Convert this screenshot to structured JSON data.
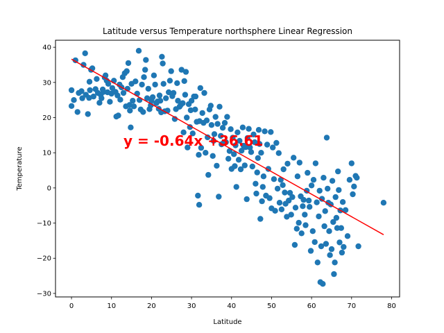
{
  "chart_data": {
    "type": "scatter",
    "title": "Latitude versus Temperature northsphere Linear Regression",
    "xlabel": "Latitude",
    "ylabel": "Temperature",
    "xlim": [
      -4,
      82
    ],
    "ylim": [
      -31,
      42
    ],
    "xticks": [
      0,
      10,
      20,
      30,
      40,
      50,
      60,
      70,
      80
    ],
    "yticks": [
      -30,
      -20,
      -10,
      0,
      10,
      20,
      30,
      40
    ],
    "grid": false,
    "point_color": "#1f77b4",
    "line_color": "#ff0000",
    "annotation_color": "#ff0000",
    "regression": {
      "slope": -0.64,
      "intercept": 36.61,
      "x_range": [
        0,
        78
      ],
      "equation_label": "y = -0.64x +36.61",
      "label_anchor": [
        13,
        12
      ]
    },
    "points": [
      [
        0,
        27.8
      ],
      [
        0,
        23.3
      ],
      [
        0.6,
        25
      ],
      [
        1,
        36.3
      ],
      [
        1.5,
        21.6
      ],
      [
        1.8,
        27
      ],
      [
        2.5,
        27.5
      ],
      [
        2.7,
        25.5
      ],
      [
        3,
        35
      ],
      [
        3.4,
        38.3
      ],
      [
        3.6,
        26.5
      ],
      [
        4.1,
        21
      ],
      [
        4.4,
        25.6
      ],
      [
        4.5,
        30.2
      ],
      [
        4.6,
        27.8
      ],
      [
        4.9,
        33.6
      ],
      [
        5.2,
        34
      ],
      [
        5.5,
        26
      ],
      [
        6,
        28.1
      ],
      [
        6.3,
        31
      ],
      [
        6.6,
        27
      ],
      [
        7,
        24.2
      ],
      [
        7.3,
        26.5
      ],
      [
        7.5,
        25.5
      ],
      [
        7.8,
        28
      ],
      [
        8,
        27.3
      ],
      [
        8.3,
        31.4
      ],
      [
        8.5,
        32
      ],
      [
        8.8,
        30.5
      ],
      [
        9,
        27.2
      ],
      [
        9.2,
        29.6
      ],
      [
        9.6,
        24.5
      ],
      [
        10,
        26.8
      ],
      [
        10.2,
        28.4
      ],
      [
        10.6,
        30.5
      ],
      [
        11,
        27.3
      ],
      [
        11.2,
        20.3
      ],
      [
        11.5,
        26.3
      ],
      [
        11.7,
        20.6
      ],
      [
        12,
        29.4
      ],
      [
        12.2,
        25.1
      ],
      [
        12.5,
        28.6
      ],
      [
        12.8,
        31.5
      ],
      [
        13,
        27
      ],
      [
        13.3,
        32.6
      ],
      [
        13.6,
        23.2
      ],
      [
        13.8,
        33.2
      ],
      [
        14,
        28.2
      ],
      [
        14.2,
        35.5
      ],
      [
        14.5,
        23.6
      ],
      [
        14.6,
        22
      ],
      [
        14.8,
        17.2
      ],
      [
        15,
        29.6
      ],
      [
        15.3,
        24.8
      ],
      [
        15.6,
        23.2
      ],
      [
        16,
        30.3
      ],
      [
        16.4,
        26.8
      ],
      [
        16.8,
        39
      ],
      [
        17,
        25
      ],
      [
        17.3,
        22.3
      ],
      [
        17.6,
        29.4
      ],
      [
        17.9,
        21.6
      ],
      [
        18.1,
        31.5
      ],
      [
        18.4,
        33.6
      ],
      [
        18.6,
        36.4
      ],
      [
        18.9,
        25.5
      ],
      [
        19.2,
        28.2
      ],
      [
        19.5,
        22.4
      ],
      [
        19.8,
        23.5
      ],
      [
        20,
        24.8
      ],
      [
        20.3,
        25.8
      ],
      [
        20.6,
        32
      ],
      [
        20.9,
        29.4
      ],
      [
        21.2,
        24.1
      ],
      [
        21.5,
        24.6
      ],
      [
        21.8,
        22.5
      ],
      [
        22,
        26.3
      ],
      [
        22.2,
        24.8
      ],
      [
        22.4,
        21.5
      ],
      [
        22.6,
        37.3
      ],
      [
        22.8,
        35.4
      ],
      [
        23,
        29.6
      ],
      [
        23.3,
        21.8
      ],
      [
        23.6,
        25.5
      ],
      [
        24,
        22
      ],
      [
        24.3,
        27.2
      ],
      [
        24.6,
        30.5
      ],
      [
        24.9,
        33.2
      ],
      [
        25.2,
        26.1
      ],
      [
        25.5,
        27
      ],
      [
        25.8,
        19.6
      ],
      [
        26.1,
        22.4
      ],
      [
        26.4,
        29.8
      ],
      [
        26.6,
        24.8
      ],
      [
        27,
        23.1
      ],
      [
        27.3,
        23.6
      ],
      [
        27.5,
        33.6
      ],
      [
        27.8,
        24.1
      ],
      [
        28,
        15.8
      ],
      [
        28.2,
        30.4
      ],
      [
        28.4,
        26.5
      ],
      [
        28.6,
        33
      ],
      [
        28.8,
        20
      ],
      [
        29,
        11.5
      ],
      [
        29.3,
        23.8
      ],
      [
        29.6,
        17.3
      ],
      [
        29.8,
        22.1
      ],
      [
        30,
        24.8
      ],
      [
        30.3,
        15.5
      ],
      [
        30.6,
        26
      ],
      [
        30.9,
        22.3
      ],
      [
        31,
        26
      ],
      [
        31.3,
        18.8
      ],
      [
        31.6,
        -2.2
      ],
      [
        31.8,
        9.4
      ],
      [
        31.9,
        -4.8
      ],
      [
        32,
        19
      ],
      [
        32.2,
        28.4
      ],
      [
        32.4,
        11.4
      ],
      [
        32.7,
        21.3
      ],
      [
        33,
        18.5
      ],
      [
        33.2,
        27
      ],
      [
        33.5,
        10
      ],
      [
        33.8,
        19.2
      ],
      [
        34,
        14.4
      ],
      [
        34.2,
        3.7
      ],
      [
        34.5,
        22.3
      ],
      [
        34.8,
        23.4
      ],
      [
        35,
        17.9
      ],
      [
        35.3,
        9.1
      ],
      [
        35.5,
        13.4
      ],
      [
        35.7,
        15.3
      ],
      [
        36,
        20.2
      ],
      [
        36.3,
        6.3
      ],
      [
        36.5,
        18.2
      ],
      [
        36.8,
        -2.5
      ],
      [
        37,
        23.1
      ],
      [
        37.3,
        14.8
      ],
      [
        37.5,
        12.4
      ],
      [
        37.8,
        17.1
      ],
      [
        38,
        12.8
      ],
      [
        38.3,
        18.5
      ],
      [
        38.6,
        13
      ],
      [
        38.9,
        20.2
      ],
      [
        39.2,
        8.3
      ],
      [
        39.5,
        10.5
      ],
      [
        39.8,
        16.7
      ],
      [
        40,
        5.4
      ],
      [
        40.3,
        14.3
      ],
      [
        40.6,
        9.6
      ],
      [
        40.8,
        6.2
      ],
      [
        41,
        12.1
      ],
      [
        41.2,
        0.3
      ],
      [
        41.5,
        15.8
      ],
      [
        41.8,
        8
      ],
      [
        42,
        13.4
      ],
      [
        42.3,
        5.3
      ],
      [
        42.5,
        10.6
      ],
      [
        42.8,
        17.2
      ],
      [
        43,
        12
      ],
      [
        43.3,
        6.4
      ],
      [
        43.5,
        11.6
      ],
      [
        43.8,
        -3.2
      ],
      [
        44,
        14.2
      ],
      [
        44.3,
        16.8
      ],
      [
        44.6,
        11.5
      ],
      [
        44.9,
        10.2
      ],
      [
        45.2,
        6.1
      ],
      [
        45.5,
        15.2
      ],
      [
        45.8,
        13
      ],
      [
        46,
        1.2
      ],
      [
        46.2,
        -1.6
      ],
      [
        46.4,
        4.4
      ],
      [
        46.6,
        8.5
      ],
      [
        46.8,
        16.5
      ],
      [
        47,
        12.5
      ],
      [
        47.2,
        -8.8
      ],
      [
        47.4,
        10
      ],
      [
        47.6,
        -3.8
      ],
      [
        47.8,
        0.3
      ],
      [
        48,
        3.3
      ],
      [
        48.3,
        16.1
      ],
      [
        48.6,
        -2.2
      ],
      [
        48.9,
        12.3
      ],
      [
        49.2,
        5.4
      ],
      [
        49.5,
        -2.9
      ],
      [
        49.8,
        15.9
      ],
      [
        50,
        -5.8
      ],
      [
        50.3,
        11.5
      ],
      [
        50.6,
        2.5
      ],
      [
        50.9,
        -6.5
      ],
      [
        51.2,
        12.8
      ],
      [
        51.5,
        -0.2
      ],
      [
        51.8,
        9.9
      ],
      [
        52,
        -4.2
      ],
      [
        52.3,
        2.3
      ],
      [
        52.5,
        -6.1
      ],
      [
        52.8,
        0.8
      ],
      [
        53,
        5.3
      ],
      [
        53.3,
        -1.3
      ],
      [
        53.5,
        -4.5
      ],
      [
        53.8,
        -8.2
      ],
      [
        54,
        6.9
      ],
      [
        54.3,
        -3.6
      ],
      [
        54.6,
        -1.4
      ],
      [
        54.9,
        -7.6
      ],
      [
        55.2,
        -2.6
      ],
      [
        55.5,
        8.6
      ],
      [
        55.8,
        -16.2
      ],
      [
        56,
        -5.6
      ],
      [
        56.3,
        -11.6
      ],
      [
        56.5,
        3.3
      ],
      [
        56.8,
        -9.9
      ],
      [
        57,
        7.2
      ],
      [
        57.3,
        -2.4
      ],
      [
        57.5,
        -12.9
      ],
      [
        57.8,
        -5.2
      ],
      [
        58,
        -3.4
      ],
      [
        58.3,
        -7.6
      ],
      [
        58.5,
        -10.6
      ],
      [
        58.8,
        -0.8
      ],
      [
        59,
        4.3
      ],
      [
        59.3,
        -3.6
      ],
      [
        59.5,
        -5.4
      ],
      [
        59.8,
        -17.9
      ],
      [
        60,
        0.7
      ],
      [
        60.3,
        -12.3
      ],
      [
        60.5,
        2.3
      ],
      [
        60.8,
        -15.4
      ],
      [
        61,
        7
      ],
      [
        61.3,
        -4.1
      ],
      [
        61.5,
        -21.2
      ],
      [
        61.8,
        -8.1
      ],
      [
        62,
        -0.8
      ],
      [
        62.2,
        -26.8
      ],
      [
        62.4,
        -16.6
      ],
      [
        62.6,
        -3.1
      ],
      [
        62.8,
        -27.3
      ],
      [
        63,
        2.9
      ],
      [
        63.2,
        -10.9
      ],
      [
        63.4,
        -6.6
      ],
      [
        63.6,
        -15.9
      ],
      [
        63.8,
        14.3
      ],
      [
        64,
        -0.2
      ],
      [
        64.2,
        -4.2
      ],
      [
        64.4,
        -12.3
      ],
      [
        64.6,
        -19.1
      ],
      [
        64.8,
        -4.7
      ],
      [
        65,
        -17.4
      ],
      [
        65.2,
        2
      ],
      [
        65.4,
        -9.7
      ],
      [
        65.6,
        -24.5
      ],
      [
        65.8,
        -21.2
      ],
      [
        66,
        -2.6
      ],
      [
        66.2,
        -8.5
      ],
      [
        66.4,
        -11.4
      ],
      [
        66.6,
        4.7
      ],
      [
        66.8,
        -0.6
      ],
      [
        67,
        -15.5
      ],
      [
        67.2,
        -6.4
      ],
      [
        67.4,
        -11.4
      ],
      [
        67.6,
        -18.4
      ],
      [
        67.8,
        -4
      ],
      [
        68,
        -16.8
      ],
      [
        68.5,
        -6.3
      ],
      [
        69,
        -13.7
      ],
      [
        69.5,
        2.3
      ],
      [
        70,
        7
      ],
      [
        70.3,
        -1.8
      ],
      [
        70.6,
        0.4
      ],
      [
        71,
        3.4
      ],
      [
        71.3,
        2.9
      ],
      [
        71.7,
        -16.6
      ],
      [
        78,
        -4.2
      ]
    ]
  }
}
